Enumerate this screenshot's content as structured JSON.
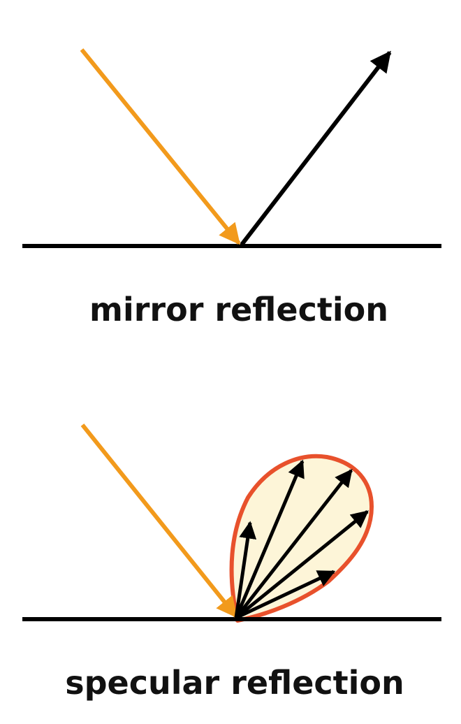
{
  "diagrams": [
    {
      "caption": "mirror reflection"
    },
    {
      "caption": "specular reflection"
    }
  ],
  "colors": {
    "incident_ray": "#f29a1c",
    "reflected_ray": "#000000",
    "surface": "#000000",
    "lobe_fill": "#fdf5d8",
    "lobe_outline": "#e8512c"
  }
}
